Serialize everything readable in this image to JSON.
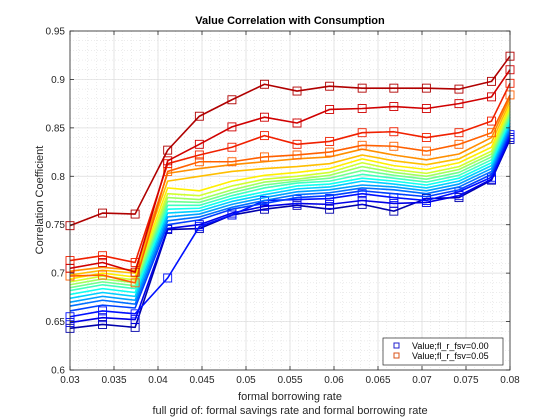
{
  "chart_data": {
    "type": "line",
    "title": "Value Correlation with Consumption",
    "xlabel": "formal borrowing rate",
    "ylabel": "Correlation Coefficient",
    "subcaption": "full grid of: formal savings rate and formal borrowing rate",
    "xlim": [
      0.03,
      0.08
    ],
    "ylim": [
      0.6,
      0.95
    ],
    "xticks": [
      0.03,
      0.035,
      0.04,
      0.045,
      0.05,
      0.055,
      0.06,
      0.065,
      0.07,
      0.075,
      0.08
    ],
    "xtick_labels": [
      "0.03",
      "0.035",
      "0.04",
      "0.045",
      "0.05",
      "0.055",
      "0.06",
      "0.065",
      "0.07",
      "0.075",
      "0.08"
    ],
    "yticks": [
      0.6,
      0.65,
      0.7,
      0.75,
      0.8,
      0.85,
      0.9,
      0.95
    ],
    "ytick_labels": [
      "0.6",
      "0.65",
      "0.7",
      "0.75",
      "0.8",
      "0.85",
      "0.9",
      "0.95"
    ],
    "grid": true,
    "minor_grid": true,
    "legend_position": "bottom-right",
    "legend": [
      {
        "label": "Value;fl_r_fsv=0.00",
        "color": "#1f1fcc"
      },
      {
        "label": "Value;fl_r_fsv=0.05",
        "color": "#d95319"
      }
    ],
    "x": [
      0.03,
      0.0337,
      0.0374,
      0.0411,
      0.0447,
      0.0484,
      0.0521,
      0.0558,
      0.0595,
      0.0632,
      0.0668,
      0.0705,
      0.0742,
      0.0779,
      0.08
    ],
    "series": [
      {
        "color": "#0000aa",
        "markers": true,
        "values": [
          0.643,
          0.647,
          0.644,
          0.745,
          0.746,
          0.76,
          0.766,
          0.77,
          0.766,
          0.771,
          0.764,
          0.777,
          0.778,
          0.796,
          0.838
        ]
      },
      {
        "color": "#0000e6",
        "markers": true,
        "values": [
          0.649,
          0.654,
          0.652,
          0.746,
          0.75,
          0.762,
          0.769,
          0.772,
          0.771,
          0.775,
          0.772,
          0.773,
          0.78,
          0.797,
          0.84
        ]
      },
      {
        "color": "#0010ff",
        "markers": true,
        "values": [
          0.655,
          0.661,
          0.658,
          0.695,
          0.748,
          0.76,
          0.775,
          0.776,
          0.777,
          0.782,
          0.778,
          0.775,
          0.784,
          0.799,
          0.843
        ]
      },
      {
        "color": "#0040ff",
        "markers": false,
        "values": [
          0.661,
          0.667,
          0.664,
          0.75,
          0.755,
          0.766,
          0.772,
          0.778,
          0.78,
          0.785,
          0.782,
          0.779,
          0.786,
          0.802,
          0.846
        ]
      },
      {
        "color": "#0070ff",
        "markers": false,
        "values": [
          0.666,
          0.672,
          0.668,
          0.754,
          0.758,
          0.768,
          0.775,
          0.781,
          0.783,
          0.788,
          0.786,
          0.782,
          0.789,
          0.805,
          0.849
        ]
      },
      {
        "color": "#00a0ff",
        "markers": false,
        "values": [
          0.67,
          0.676,
          0.672,
          0.758,
          0.761,
          0.771,
          0.778,
          0.784,
          0.786,
          0.791,
          0.789,
          0.785,
          0.792,
          0.808,
          0.852
        ]
      },
      {
        "color": "#00d0ff",
        "markers": false,
        "values": [
          0.674,
          0.68,
          0.676,
          0.762,
          0.764,
          0.774,
          0.781,
          0.787,
          0.789,
          0.795,
          0.792,
          0.788,
          0.795,
          0.811,
          0.855
        ]
      },
      {
        "color": "#10ffef",
        "markers": false,
        "values": [
          0.678,
          0.684,
          0.68,
          0.766,
          0.767,
          0.777,
          0.784,
          0.79,
          0.792,
          0.798,
          0.795,
          0.791,
          0.798,
          0.814,
          0.858
        ]
      },
      {
        "color": "#40ffbf",
        "markers": false,
        "values": [
          0.682,
          0.688,
          0.684,
          0.77,
          0.77,
          0.78,
          0.788,
          0.793,
          0.795,
          0.802,
          0.798,
          0.794,
          0.801,
          0.817,
          0.861
        ]
      },
      {
        "color": "#70ff8f",
        "markers": false,
        "values": [
          0.685,
          0.691,
          0.687,
          0.774,
          0.773,
          0.783,
          0.791,
          0.795,
          0.798,
          0.806,
          0.801,
          0.797,
          0.804,
          0.82,
          0.864
        ]
      },
      {
        "color": "#a0ff60",
        "markers": false,
        "values": [
          0.688,
          0.694,
          0.69,
          0.778,
          0.776,
          0.786,
          0.794,
          0.797,
          0.801,
          0.81,
          0.804,
          0.8,
          0.807,
          0.823,
          0.867
        ]
      },
      {
        "color": "#d0ff30",
        "markers": false,
        "values": [
          0.691,
          0.697,
          0.693,
          0.782,
          0.78,
          0.79,
          0.797,
          0.8,
          0.804,
          0.814,
          0.807,
          0.803,
          0.81,
          0.826,
          0.87
        ]
      },
      {
        "color": "#ffef00",
        "markers": false,
        "values": [
          0.694,
          0.7,
          0.696,
          0.788,
          0.785,
          0.795,
          0.801,
          0.804,
          0.808,
          0.818,
          0.811,
          0.807,
          0.814,
          0.83,
          0.873
        ]
      },
      {
        "color": "#ffbf00",
        "markers": false,
        "values": [
          0.698,
          0.703,
          0.7,
          0.795,
          0.8,
          0.805,
          0.808,
          0.81,
          0.813,
          0.822,
          0.816,
          0.812,
          0.818,
          0.835,
          0.877
        ]
      },
      {
        "color": "#ff8f00",
        "markers": false,
        "values": [
          0.702,
          0.706,
          0.703,
          0.803,
          0.808,
          0.812,
          0.815,
          0.818,
          0.82,
          0.828,
          0.822,
          0.817,
          0.823,
          0.84,
          0.881
        ]
      },
      {
        "color": "#ff6000",
        "markers": true,
        "values": [
          0.697,
          0.698,
          0.69,
          0.805,
          0.815,
          0.815,
          0.82,
          0.822,
          0.825,
          0.832,
          0.831,
          0.826,
          0.833,
          0.845,
          0.884
        ]
      },
      {
        "color": "#f02000",
        "markers": true,
        "values": [
          0.713,
          0.718,
          0.711,
          0.813,
          0.822,
          0.83,
          0.842,
          0.833,
          0.836,
          0.845,
          0.846,
          0.84,
          0.845,
          0.857,
          0.896
        ]
      },
      {
        "color": "#d00000",
        "markers": true,
        "values": [
          0.705,
          0.711,
          0.701,
          0.816,
          0.833,
          0.851,
          0.861,
          0.855,
          0.869,
          0.87,
          0.872,
          0.87,
          0.875,
          0.882,
          0.91
        ]
      },
      {
        "color": "#b00000",
        "markers": true,
        "values": [
          0.749,
          0.762,
          0.761,
          0.827,
          0.862,
          0.879,
          0.895,
          0.888,
          0.893,
          0.891,
          0.891,
          0.891,
          0.89,
          0.898,
          0.924
        ]
      }
    ]
  }
}
